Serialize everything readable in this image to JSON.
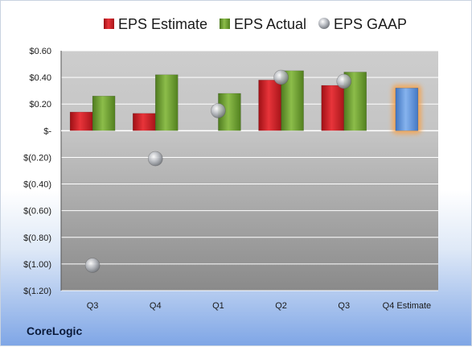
{
  "company": "CoreLogic",
  "colors": {
    "estimate": "#e0262b",
    "actual": "#79a93b",
    "gaap": "#b9bcc2",
    "future_estimate": "#6b9ee0",
    "future_glow": "#f7a24a"
  },
  "chart_data": {
    "type": "bar",
    "categories": [
      "Q3",
      "Q4",
      "Q1",
      "Q2",
      "Q3",
      "Q4 Estimate"
    ],
    "series": [
      {
        "name": "EPS Estimate",
        "values": [
          0.14,
          0.13,
          null,
          0.38,
          0.34,
          0.32
        ]
      },
      {
        "name": "EPS Actual",
        "values": [
          0.26,
          0.42,
          0.28,
          0.45,
          0.44,
          null
        ]
      },
      {
        "name": "EPS GAAP",
        "values": [
          -1.01,
          -0.21,
          0.15,
          0.4,
          0.37,
          null
        ]
      }
    ],
    "ylim": [
      -1.2,
      0.6
    ],
    "yticks": [
      0.6,
      0.4,
      0.2,
      0,
      -0.2,
      -0.4,
      -0.6,
      -0.8,
      -1.0,
      -1.2
    ],
    "ytick_labels": [
      "$0.60",
      "$0.40",
      "$0.20",
      "$-",
      "$(0.20)",
      "$(0.40)",
      "$(0.60)",
      "$(0.80)",
      "$(1.00)",
      "$(1.20)"
    ],
    "legend_position": "top",
    "grid": true
  }
}
